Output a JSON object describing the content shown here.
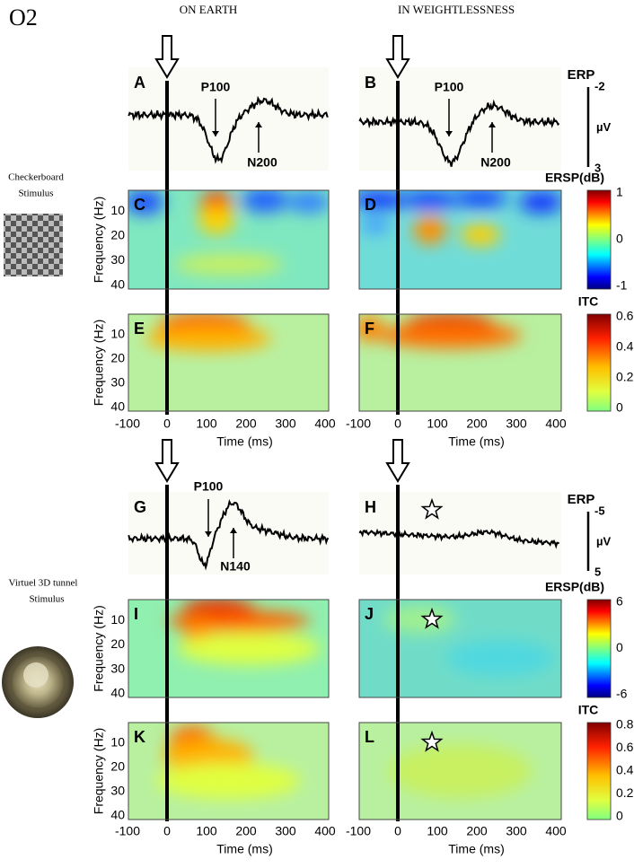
{
  "figure_label": "O2",
  "columns": [
    "ON EARTH",
    "IN WEIGHTLESSNESS"
  ],
  "time_ticks": [
    -100,
    0,
    100,
    200,
    300,
    400
  ],
  "freq_ticks": [
    10,
    20,
    30,
    40
  ],
  "x_axis_label": "Time (ms)",
  "y_axis_label": "Frequency (Hz)",
  "sections": [
    {
      "stimulus": [
        "Checkerboard",
        "Stimulus"
      ],
      "erp": {
        "letters": [
          "A",
          "B"
        ],
        "peaks": [
          [
            "P100",
            "N200"
          ],
          [
            "P100",
            "N200"
          ]
        ],
        "label": "ERP",
        "scale_top": -2,
        "scale_unit": "µV",
        "scale_bottom": 3
      },
      "ersp": {
        "letters": [
          "C",
          "D"
        ],
        "label": "ERSP(dB)",
        "colorbar": [
          1,
          0,
          -1
        ]
      },
      "itc": {
        "letters": [
          "E",
          "F"
        ],
        "label": "ITC",
        "colorbar": [
          0.6,
          0.4,
          0.2,
          0
        ]
      }
    },
    {
      "stimulus": [
        "Virtuel 3D tunnel",
        "Stimulus"
      ],
      "erp": {
        "letters": [
          "G",
          "H"
        ],
        "peaks": [
          [
            "P100",
            "N140"
          ],
          []
        ],
        "label": "ERP",
        "scale_top": -5,
        "scale_unit": "µV",
        "scale_bottom": 5
      },
      "ersp": {
        "letters": [
          "I",
          "J"
        ],
        "label": "ERSP(dB)",
        "colorbar": [
          6,
          0,
          -6
        ]
      },
      "itc": {
        "letters": [
          "K",
          "L"
        ],
        "label": "ITC",
        "colorbar": [
          0.8,
          0.6,
          0.4,
          0.2,
          0
        ]
      }
    }
  ]
}
